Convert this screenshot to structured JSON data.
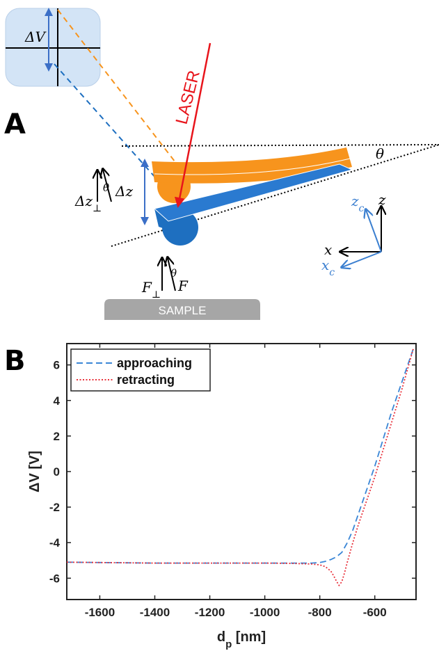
{
  "panel_a": {
    "letter": "A",
    "delta_v_label": "ΔV",
    "laser_label": "LASER",
    "theta_label": "θ",
    "dz_perp_label": "Δz⊥",
    "dz_label": "Δz",
    "f_perp_label": "F⊥",
    "f_label": "F",
    "sample_label": "SAMPLE",
    "axes": {
      "x": "x",
      "z": "z",
      "xc": "xc",
      "zc": "zc"
    },
    "colors": {
      "orange": "#f7941d",
      "blue": "#1e6fc0",
      "laser": "#e8141b",
      "axis_blue": "#3b7fd0",
      "sample": "#a6a6a6",
      "detector": "#d3e4f6"
    }
  },
  "panel_b": {
    "letter": "B"
  },
  "chart_data": {
    "type": "line",
    "xlabel": "d",
    "xlabel_sub": "p",
    "xlabel_unit": "[nm]",
    "ylabel": "ΔV [V]",
    "xlim": [
      -1720,
      -450
    ],
    "ylim": [
      -7.2,
      7.2
    ],
    "xticks": [
      -1600,
      -1400,
      -1200,
      -1000,
      -800,
      -600
    ],
    "yticks": [
      6,
      4,
      2,
      0,
      -2,
      -4,
      -6
    ],
    "legend_position": "top-left",
    "series": [
      {
        "name": "approaching",
        "color": "#3a86d6",
        "dash": "dashed",
        "x": [
          -1720,
          -1600,
          -1400,
          -1200,
          -1000,
          -900,
          -830,
          -800,
          -780,
          -760,
          -740,
          -720,
          -700,
          -680,
          -660,
          -640,
          -620,
          -600,
          -580,
          -560,
          -540,
          -520,
          -500,
          -480,
          -460
        ],
        "y": [
          -5.1,
          -5.12,
          -5.15,
          -5.15,
          -5.15,
          -5.15,
          -5.15,
          -5.12,
          -5.05,
          -4.95,
          -4.8,
          -4.55,
          -4.0,
          -3.3,
          -2.4,
          -1.5,
          -0.6,
          0.3,
          1.3,
          2.3,
          3.3,
          4.2,
          5.1,
          6.0,
          6.9
        ]
      },
      {
        "name": "retracting",
        "color": "#e8303a",
        "dash": "dotted",
        "x": [
          -1720,
          -1600,
          -1400,
          -1200,
          -1000,
          -900,
          -830,
          -800,
          -780,
          -760,
          -750,
          -740,
          -730,
          -720,
          -710,
          -700,
          -680,
          -660,
          -640,
          -620,
          -600,
          -580,
          -560,
          -540,
          -520,
          -500,
          -480,
          -460
        ],
        "y": [
          -5.1,
          -5.12,
          -5.15,
          -5.15,
          -5.15,
          -5.17,
          -5.2,
          -5.25,
          -5.35,
          -5.6,
          -5.85,
          -6.15,
          -6.4,
          -6.2,
          -5.7,
          -5.1,
          -4.0,
          -3.0,
          -2.1,
          -1.2,
          -0.3,
          0.7,
          1.7,
          2.7,
          3.7,
          4.7,
          5.8,
          6.9
        ]
      }
    ]
  }
}
